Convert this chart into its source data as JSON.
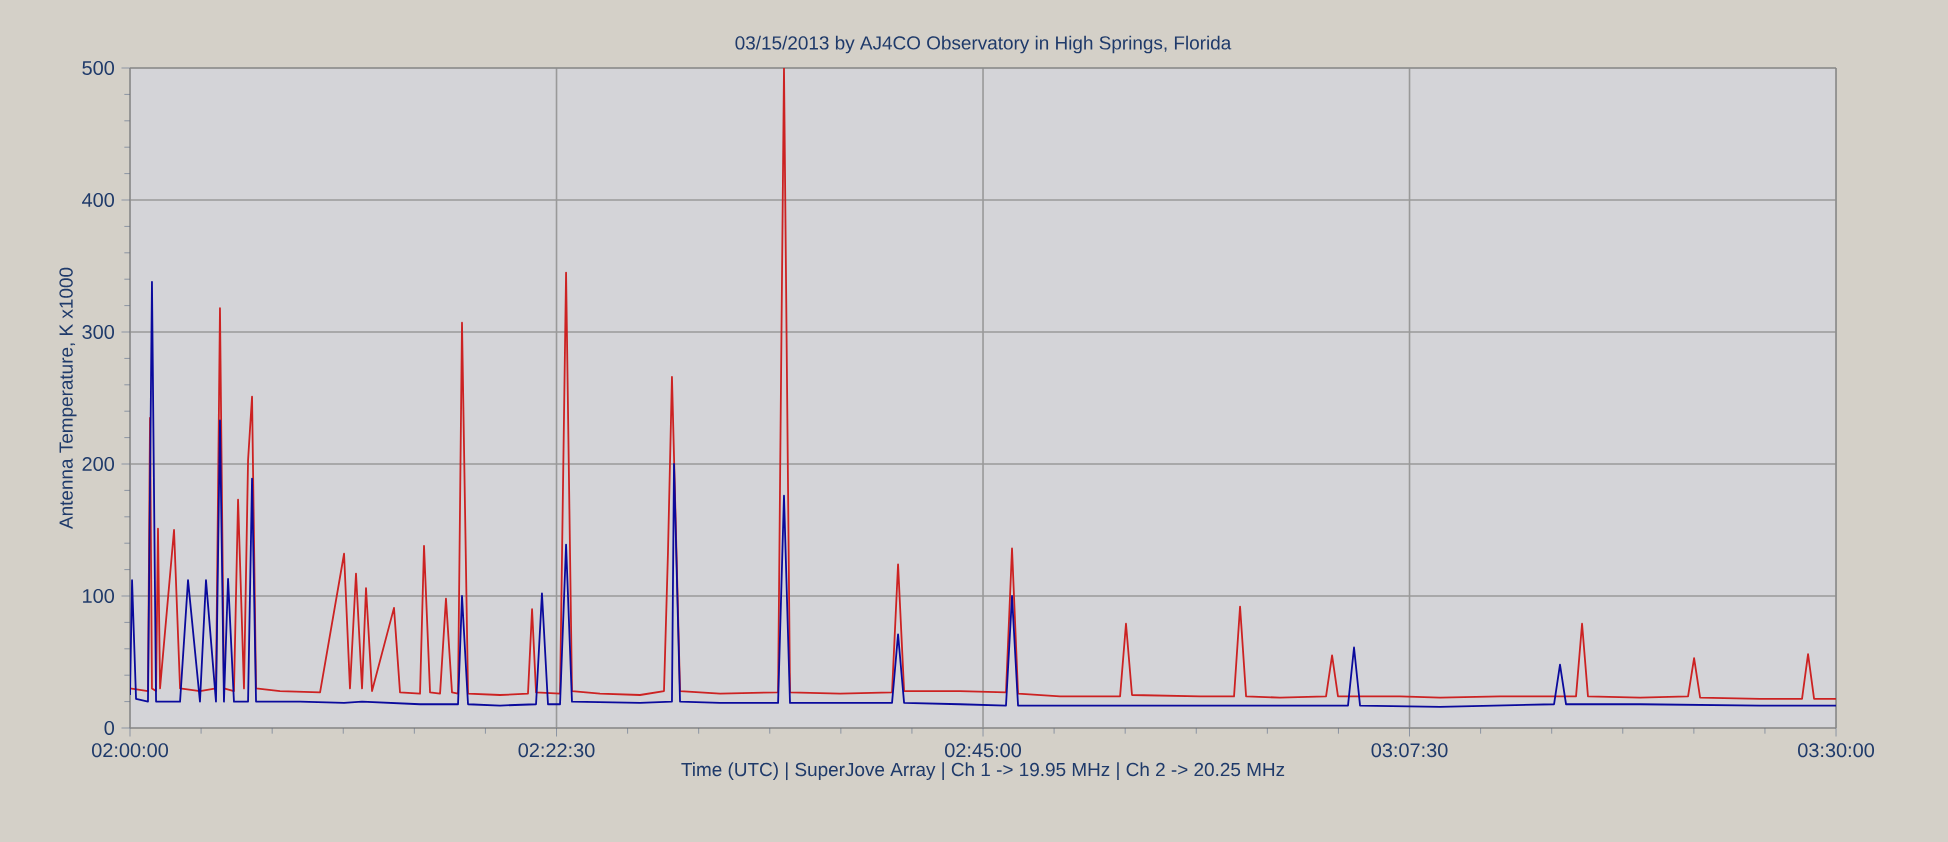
{
  "chart_data": {
    "type": "line",
    "title": "03/15/2013  by  AJ4CO Observatory  in  High Springs, Florida",
    "xlabel": "Time (UTC)  |  SuperJove Array  |  Ch 1 -> 19.95 MHz  |  Ch 2 -> 20.25 MHz",
    "ylabel": "Antenna Temperature, K x1000",
    "series": [
      {
        "color": "#cc2222",
        "x": [
          2.0,
          2.0158,
          2.0176,
          2.0193,
          2.0229,
          2.0246,
          2.0264,
          2.0387,
          2.044,
          2.0615,
          2.0756,
          2.0791,
          2.0826,
          2.0914,
          2.095,
          2.1002,
          2.1038,
          2.1073,
          2.1108,
          2.1319,
          2.1671,
          2.1882,
          2.1934,
          2.1987,
          2.204,
          2.2075,
          2.2128,
          2.2321,
          2.2374,
          2.255,
          2.2585,
          2.2638,
          2.2726,
          2.2778,
          2.2831,
          2.2884,
          2.2919,
          2.2972,
          2.3253,
          2.3499,
          2.3535,
          2.357,
          2.3781,
          2.3834,
          2.3886,
          2.4132,
          2.4484,
          2.4695,
          2.473,
          2.4765,
          2.4836,
          2.5188,
          2.5698,
          2.575,
          2.5803,
          2.6243,
          2.67,
          2.6753,
          2.6806,
          2.7298,
          2.7702,
          2.7755,
          2.7808,
          2.8177,
          2.8705,
          2.8757,
          2.881,
          2.9408,
          2.9707,
          2.976,
          2.9813,
          3.0111,
          3.0516,
          3.0569,
          3.0621,
          3.1166,
          3.1518,
          3.2046,
          3.2714,
          3.2767,
          3.2819,
          3.3277,
          3.3699,
          3.3752,
          3.3805,
          3.4332,
          3.4701,
          3.4754,
          3.4807,
          3.5
        ],
        "values": [
          30,
          28,
          235,
          30,
          28,
          151,
          30,
          150,
          30,
          28,
          30,
          318,
          30,
          28,
          173,
          30,
          203,
          251,
          30,
          28,
          27,
          132,
          30,
          117,
          30,
          106,
          28,
          91,
          27,
          26,
          138,
          27,
          26,
          98,
          27,
          26,
          307,
          26,
          25,
          26,
          90,
          27,
          26,
          345,
          28,
          26,
          25,
          28,
          133,
          266,
          28,
          26,
          27,
          500,
          27,
          26,
          27,
          124,
          28,
          28,
          27,
          136,
          26,
          24,
          24,
          79,
          25,
          24,
          24,
          92,
          24,
          23,
          24,
          55,
          24,
          24,
          23,
          24,
          24,
          79,
          24,
          23,
          24,
          53,
          23,
          22,
          22,
          56,
          22,
          22
        ]
      },
      {
        "color": "#0a0a9c",
        "x": [
          2.0,
          2.0018,
          2.0053,
          2.0158,
          2.0193,
          2.0229,
          2.044,
          2.051,
          2.0615,
          2.0668,
          2.0756,
          2.0791,
          2.0826,
          2.0862,
          2.0914,
          2.1038,
          2.1073,
          2.1108,
          2.1495,
          2.1882,
          2.204,
          2.255,
          2.2884,
          2.2919,
          2.2972,
          2.3253,
          2.357,
          2.3622,
          2.3675,
          2.3781,
          2.3834,
          2.3886,
          2.4484,
          2.4765,
          2.4783,
          2.4836,
          2.5188,
          2.5698,
          2.575,
          2.5803,
          2.67,
          2.6753,
          2.6806,
          2.7298,
          2.7702,
          2.7755,
          2.7808,
          2.8705,
          3.0111,
          3.0709,
          3.0762,
          3.0815,
          3.1518,
          3.2521,
          3.2573,
          3.2626,
          3.3277,
          3.4332,
          3.5
        ],
        "values": [
          25,
          112,
          22,
          20,
          338,
          20,
          20,
          112,
          20,
          112,
          20,
          233,
          20,
          113,
          20,
          20,
          189,
          20,
          20,
          19,
          20,
          18,
          18,
          100,
          18,
          17,
          18,
          102,
          18,
          18,
          139,
          20,
          19,
          20,
          200,
          20,
          19,
          19,
          176,
          19,
          19,
          71,
          19,
          18,
          17,
          100,
          17,
          17,
          17,
          17,
          61,
          17,
          16,
          18,
          48,
          18,
          18,
          17,
          17
        ]
      }
    ],
    "xlim": [
      2.0,
      3.5
    ],
    "ylim": [
      0,
      500
    ],
    "xticks": [
      {
        "value": 2.0,
        "label": "02:00:00"
      },
      {
        "value": 2.375,
        "label": "02:22:30"
      },
      {
        "value": 2.75,
        "label": "02:45:00"
      },
      {
        "value": 3.125,
        "label": "03:07:30"
      },
      {
        "value": 3.5,
        "label": "03:30:00"
      }
    ],
    "yticks": [
      0,
      100,
      200,
      300,
      400,
      500
    ],
    "grid": true
  }
}
